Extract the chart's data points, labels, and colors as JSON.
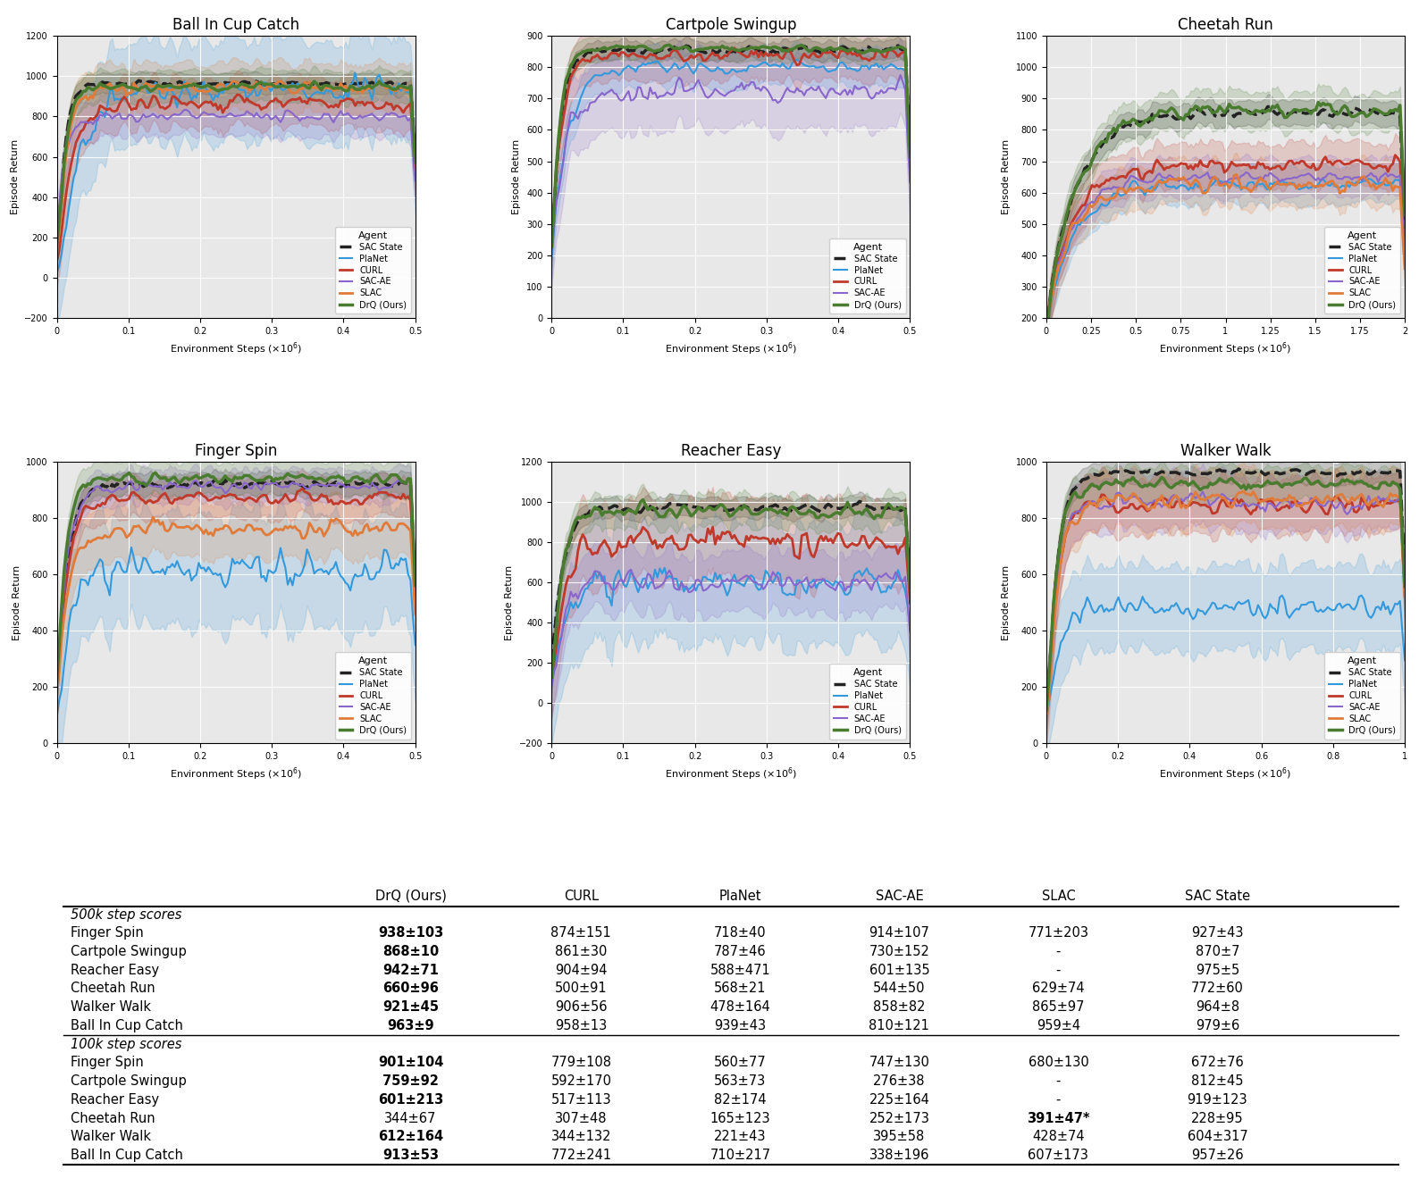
{
  "plots": [
    {
      "title": "Ball In Cup Catch",
      "xlim": [
        0,
        0.5
      ],
      "ylim": [
        -200,
        1200
      ],
      "xticks": [
        0.0,
        0.1,
        0.2,
        0.3,
        0.4,
        0.5
      ],
      "xlabel": "Environment Steps"
    },
    {
      "title": "Cartpole Swingup",
      "xlim": [
        0,
        0.5
      ],
      "ylim": [
        0,
        900
      ],
      "xticks": [
        0.0,
        0.1,
        0.2,
        0.3,
        0.4,
        0.5
      ],
      "xlabel": "Environment Steps"
    },
    {
      "title": "Cheetah Run",
      "xlim": [
        0.0,
        2.0
      ],
      "ylim": [
        200,
        1100
      ],
      "xticks": [
        0.0,
        0.25,
        0.5,
        0.75,
        1.0,
        1.25,
        1.5,
        1.75,
        2.0
      ],
      "xlabel": "Environment Steps"
    },
    {
      "title": "Finger Spin",
      "xlim": [
        0,
        0.5
      ],
      "ylim": [
        0,
        1000
      ],
      "xticks": [
        0.0,
        0.1,
        0.2,
        0.3,
        0.4,
        0.5
      ],
      "xlabel": "Environment Steps"
    },
    {
      "title": "Reacher Easy",
      "xlim": [
        0,
        0.5
      ],
      "ylim": [
        -200,
        1200
      ],
      "xticks": [
        0.0,
        0.1,
        0.2,
        0.3,
        0.4,
        0.5
      ],
      "xlabel": "Environment Steps"
    },
    {
      "title": "Walker Walk",
      "xlim": [
        0,
        1.0
      ],
      "ylim": [
        0,
        1000
      ],
      "xticks": [
        0.0,
        0.2,
        0.4,
        0.6,
        0.8,
        1.0
      ],
      "xlabel": "Environment Steps"
    }
  ],
  "agents": [
    "SAC State",
    "PlaNet",
    "CURL",
    "SAC-AE",
    "SLAC",
    "DrQ (Ours)"
  ],
  "agent_colors": {
    "SAC State": "#222222",
    "PlaNet": "#3399dd",
    "CURL": "#c0392b",
    "SAC-AE": "#8866cc",
    "SLAC": "#e07b39",
    "DrQ (Ours)": "#4a7c2f"
  },
  "agent_linestyles": {
    "SAC State": "--",
    "PlaNet": "-",
    "CURL": "-",
    "SAC-AE": "-",
    "SLAC": "-",
    "DrQ (Ours)": "-"
  },
  "agent_linewidths": {
    "SAC State": 2.5,
    "PlaNet": 1.5,
    "CURL": 2.0,
    "SAC-AE": 1.5,
    "SLAC": 2.0,
    "DrQ (Ours)": 2.5
  },
  "table": {
    "col_headers": [
      "",
      "DrQ (Ours)",
      "CURL",
      "PlaNet",
      "SAC-AE",
      "SLAC",
      "SAC State"
    ],
    "sections": [
      {
        "header": "500k step scores",
        "rows": [
          [
            "Finger Spin",
            "938±103",
            "874±151",
            "718±40",
            "914±107",
            "771±203",
            "927±43"
          ],
          [
            "Cartpole Swingup",
            "868±10",
            "861±30",
            "787±46",
            "730±152",
            "-",
            "870±7"
          ],
          [
            "Reacher Easy",
            "942±71",
            "904±94",
            "588±471",
            "601±135",
            "-",
            "975±5"
          ],
          [
            "Cheetah Run",
            "660±96",
            "500±91",
            "568±21",
            "544±50",
            "629±74",
            "772±60"
          ],
          [
            "Walker Walk",
            "921±45",
            "906±56",
            "478±164",
            "858±82",
            "865±97",
            "964±8"
          ],
          [
            "Ball In Cup Catch",
            "963±9",
            "958±13",
            "939±43",
            "810±121",
            "959±4",
            "979±6"
          ]
        ],
        "bold_drq": true,
        "bold_slac_cheetah": false
      },
      {
        "header": "100k step scores",
        "rows": [
          [
            "Finger Spin",
            "901±104",
            "779±108",
            "560±77",
            "747±130",
            "680±130",
            "672±76"
          ],
          [
            "Cartpole Swingup",
            "759±92",
            "592±170",
            "563±73",
            "276±38",
            "-",
            "812±45"
          ],
          [
            "Reacher Easy",
            "601±213",
            "517±113",
            "82±174",
            "225±164",
            "-",
            "919±123"
          ],
          [
            "Cheetah Run",
            "344±67",
            "307±48",
            "165±123",
            "252±173",
            "391±47*",
            "228±95"
          ],
          [
            "Walker Walk",
            "612±164",
            "344±132",
            "221±43",
            "395±58",
            "428±74",
            "604±317"
          ],
          [
            "Ball In Cup Catch",
            "913±53",
            "772±241",
            "710±217",
            "338±196",
            "607±173",
            "957±26"
          ]
        ],
        "bold_drq": true,
        "bold_slac_cheetah": true
      }
    ]
  },
  "bg_color": "#e8e8e8"
}
